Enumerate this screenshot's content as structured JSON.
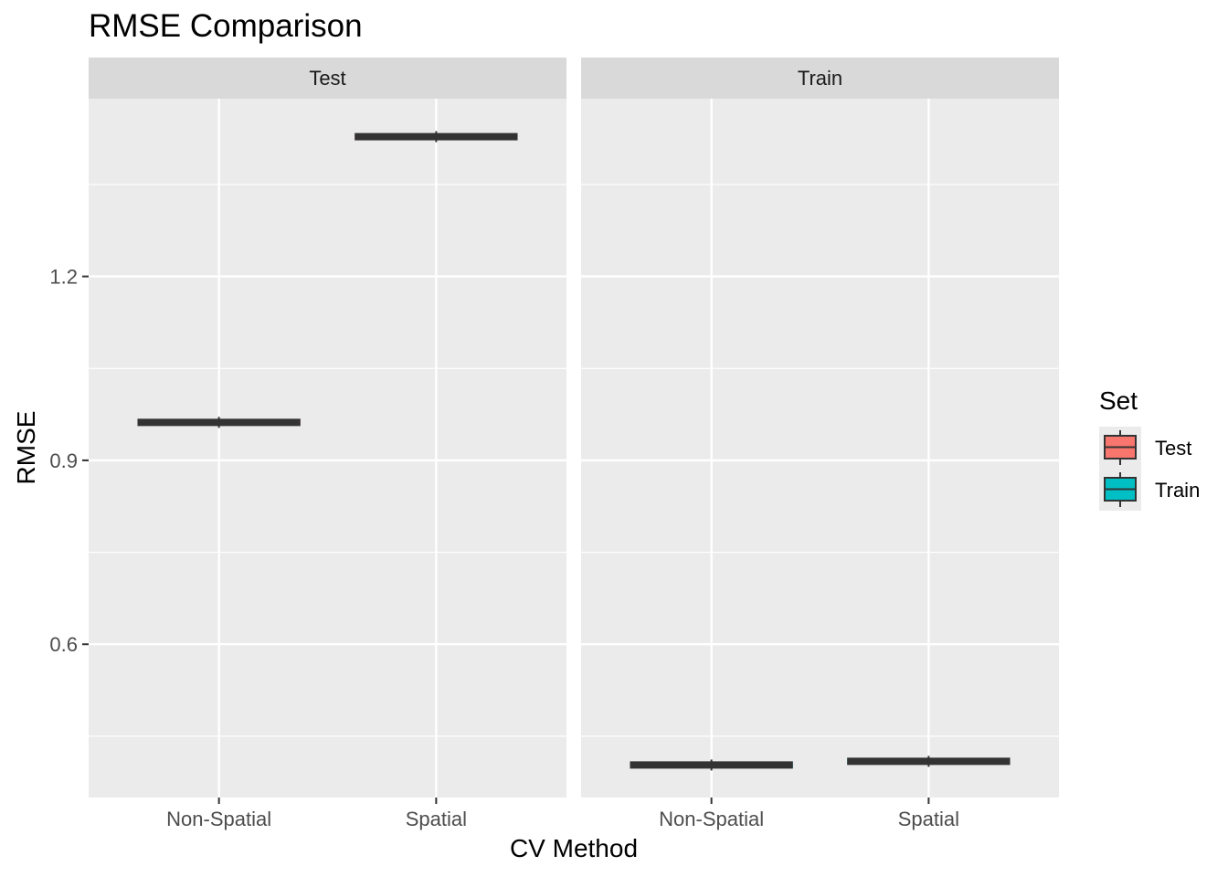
{
  "chart_data": {
    "type": "box",
    "title": "RMSE Comparison",
    "xlabel": "CV Method",
    "ylabel": "RMSE",
    "categories": [
      "Non-Spatial",
      "Spatial"
    ],
    "y_ticks": [
      0.6,
      0.9,
      1.2
    ],
    "ylim": [
      0.35,
      1.49
    ],
    "grid": true,
    "facets": [
      {
        "label": "Test",
        "fill": "#f8766d",
        "boxes": [
          {
            "category": "Non-Spatial",
            "median": 0.962
          },
          {
            "category": "Spatial",
            "median": 1.428
          }
        ]
      },
      {
        "label": "Train",
        "fill": "#00bfc4",
        "boxes": [
          {
            "category": "Non-Spatial",
            "median": 0.403
          },
          {
            "category": "Spatial",
            "median": 0.409
          }
        ]
      }
    ],
    "legend": {
      "title": "Set",
      "position": "right",
      "items": [
        {
          "label": "Test",
          "color": "#f8766d"
        },
        {
          "label": "Train",
          "color": "#00bfc4"
        }
      ]
    }
  }
}
